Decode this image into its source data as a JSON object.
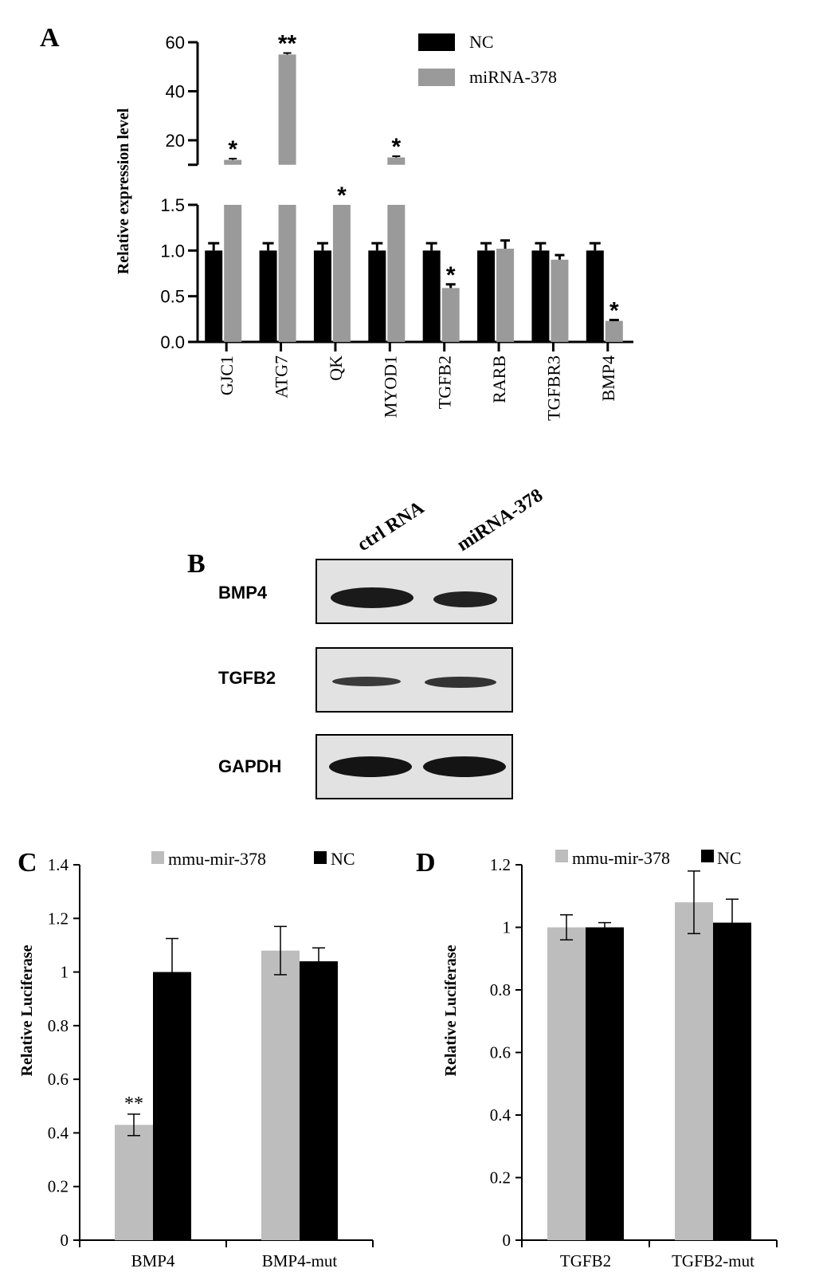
{
  "panels": {
    "a_label": "A",
    "b_label": "B",
    "c_label": "C",
    "d_label": "D"
  },
  "colors": {
    "nc": "#000000",
    "treated_a": "#9a9a9a",
    "treated_cd": "#bdbdbd",
    "axis": "#000000"
  },
  "chart_data": [
    {
      "panel": "A",
      "type": "bar",
      "ylabel": "Relative expression level",
      "categories": [
        "GJC1",
        "ATG7",
        "QK",
        "MYOD1",
        "TGFB2",
        "RARB",
        "TGFBR3",
        "BMP4"
      ],
      "broken_axis": true,
      "ylim_lower": [
        0,
        1.5
      ],
      "ylim_upper": [
        10,
        60
      ],
      "yticks_lower": [
        "0.0",
        "0.5",
        "1.0",
        "1.5"
      ],
      "yticks_upper": [
        "20",
        "40",
        "60"
      ],
      "legend": {
        "position": "top-right",
        "entries": [
          "NC",
          "miRNA-378"
        ]
      },
      "series": [
        {
          "name": "NC",
          "values": [
            1.0,
            1.0,
            1.0,
            1.0,
            1.0,
            1.0,
            1.0,
            1.0
          ],
          "errors": [
            0.08,
            0.08,
            0.08,
            0.08,
            0.08,
            0.08,
            0.08,
            0.08
          ]
        },
        {
          "name": "miRNA-378",
          "values": [
            12.0,
            55.0,
            1.5,
            13.0,
            0.59,
            1.02,
            0.9,
            0.23
          ],
          "errors": [
            0.5,
            0.6,
            0,
            0.5,
            0.04,
            0.09,
            0.05,
            0.01
          ]
        }
      ],
      "annotations": [
        "*",
        "**",
        "*",
        "*",
        "*",
        "",
        "",
        "*"
      ]
    },
    {
      "panel": "B",
      "type": "western_blot",
      "lanes": [
        "ctrl RNA",
        "miRNA-378"
      ],
      "rows": [
        "BMP4",
        "TGFB2",
        "GAPDH"
      ]
    },
    {
      "panel": "C",
      "type": "bar",
      "ylabel": "Relative Luciferase",
      "categories": [
        "BMP4",
        "BMP4-mut"
      ],
      "ylim": [
        0,
        1.4
      ],
      "yticks": [
        "0",
        "0.2",
        "0.4",
        "0.6",
        "0.8",
        "1",
        "1.2",
        "1.4"
      ],
      "legend": {
        "position": "top",
        "entries": [
          "mmu-mir-378",
          "NC"
        ]
      },
      "series": [
        {
          "name": "mmu-mir-378",
          "values": [
            0.43,
            1.08
          ],
          "errors": [
            0.04,
            0.09
          ]
        },
        {
          "name": "NC",
          "values": [
            1.0,
            1.04
          ],
          "errors": [
            0.125,
            0.05
          ]
        }
      ],
      "annotations": [
        "**",
        ""
      ]
    },
    {
      "panel": "D",
      "type": "bar",
      "ylabel": "Relative Luciferase",
      "categories": [
        "TGFB2",
        "TGFB2-mut"
      ],
      "ylim": [
        0,
        1.2
      ],
      "yticks": [
        "0",
        "0.2",
        "0.4",
        "0.6",
        "0.8",
        "1",
        "1.2"
      ],
      "legend": {
        "position": "top",
        "entries": [
          "mmu-mir-378",
          "NC"
        ]
      },
      "series": [
        {
          "name": "mmu-mir-378",
          "values": [
            1.0,
            1.08
          ],
          "errors": [
            0.04,
            0.1
          ]
        },
        {
          "name": "NC",
          "values": [
            1.0,
            1.015
          ],
          "errors": [
            0.015,
            0.075
          ]
        }
      ],
      "annotations": [
        "",
        ""
      ]
    }
  ]
}
